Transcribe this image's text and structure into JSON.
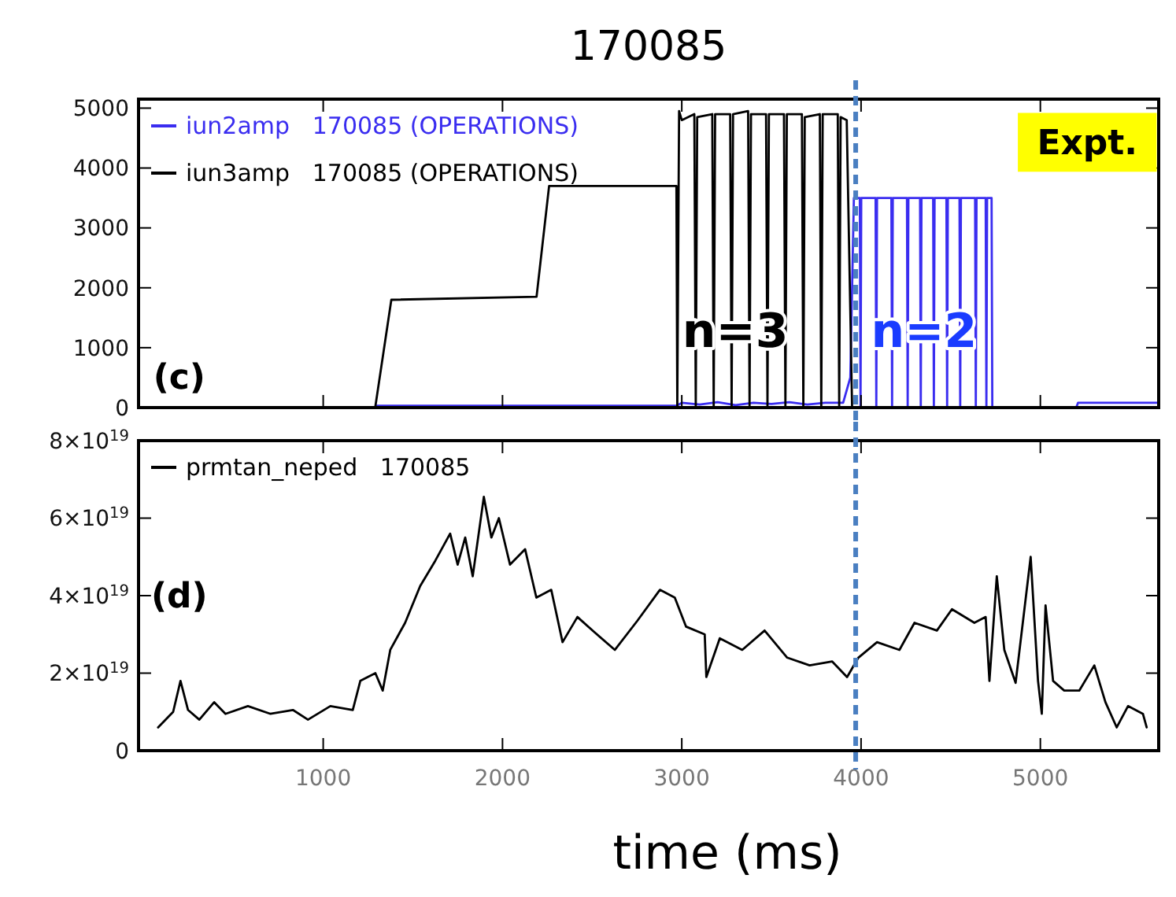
{
  "chart_data": [
    {
      "type": "line",
      "title": "170085",
      "xlim": [
        -30,
        5660
      ],
      "ylim": [
        0,
        5150
      ],
      "yticks": [
        0,
        1000,
        2000,
        3000,
        4000,
        5000
      ],
      "xticks": [
        1000,
        2000,
        3000,
        4000,
        5000
      ],
      "tick_labels": "y",
      "legend": "top left",
      "grid": false,
      "marker": "none",
      "line_style": "solid",
      "series": [
        {
          "name": "iun2amp   170085 (OPERATIONS)",
          "color": "#3a2df0",
          "x": [
            1300,
            2970,
            3000,
            3100,
            3200,
            3300,
            3400,
            3500,
            3600,
            3700,
            3800,
            3900,
            3940,
            3960,
            3993,
            3997,
            4001,
            4081,
            4085,
            4089,
            4169,
            4173,
            4177,
            4256,
            4260,
            4264,
            4329,
            4333,
            4337,
            4402,
            4406,
            4410,
            4476,
            4480,
            4484,
            4549,
            4553,
            4557,
            4636,
            4640,
            4644,
            4695,
            4699,
            4703,
            4728,
            4732,
            5200,
            5210,
            5660
          ],
          "values": [
            30,
            30,
            80,
            50,
            90,
            40,
            80,
            60,
            90,
            50,
            80,
            80,
            500,
            3500,
            3500,
            0,
            3500,
            3500,
            0,
            3500,
            3500,
            0,
            3500,
            3500,
            0,
            3500,
            3500,
            0,
            3500,
            3500,
            0,
            3500,
            3500,
            0,
            3500,
            3500,
            0,
            3500,
            3500,
            0,
            3500,
            3500,
            0,
            3500,
            3500,
            0,
            0,
            80,
            80
          ]
        },
        {
          "name": "iun3amp   170085 (OPERATIONS)",
          "color": "#000000",
          "x": [
            -30,
            1290,
            1380,
            2190,
            2260,
            2970,
            2975,
            2985,
            3000,
            3070,
            3078,
            3086,
            3170,
            3178,
            3186,
            3270,
            3278,
            3286,
            3370,
            3378,
            3386,
            3470,
            3478,
            3486,
            3570,
            3578,
            3586,
            3670,
            3678,
            3686,
            3770,
            3778,
            3786,
            3870,
            3878,
            3886,
            3920,
            3950,
            5660
          ],
          "values": [
            0,
            0,
            1800,
            1850,
            3700,
            3700,
            0,
            4950,
            4800,
            4900,
            0,
            4850,
            4900,
            0,
            4900,
            4900,
            0,
            4900,
            4950,
            0,
            4900,
            4900,
            0,
            4900,
            4900,
            0,
            4900,
            4900,
            0,
            4850,
            4900,
            0,
            4900,
            4900,
            0,
            4850,
            4800,
            0,
            0
          ]
        }
      ],
      "ref_lines": [
        {
          "axis": "x",
          "value": 3970,
          "color": "#4a7fc1",
          "line_style": "dashed"
        }
      ],
      "annotations": [
        "(c)",
        "n=3",
        "n=2",
        "Expt."
      ]
    },
    {
      "type": "line",
      "xlabel": "time (ms)",
      "xlim": [
        -30,
        5660
      ],
      "ylim": [
        0,
        8e+19
      ],
      "xticks": [
        1000,
        2000,
        3000,
        4000,
        5000
      ],
      "yticks": [
        0,
        {
          "value": 2e+19,
          "label": "2×10$^{19}$"
        },
        {
          "value": 4e+19,
          "label": "4×10$^{19}$"
        },
        {
          "value": 6e+19,
          "label": "6×10$^{19}$"
        },
        {
          "value": 8e+19,
          "label": "8×10$^{19}$"
        }
      ],
      "legend": "top left",
      "grid": false,
      "marker": "none",
      "line_style": "solid",
      "series": [
        {
          "name": "prmtan_neped   170085",
          "color": "#000000",
          "x": [
            79,
            163,
            204,
            246,
            309,
            392,
            455,
            580,
            706,
            831,
            915,
            1040,
            1165,
            1207,
            1291,
            1332,
            1374,
            1457,
            1541,
            1625,
            1708,
            1750,
            1792,
            1834,
            1896,
            1938,
            1980,
            2042,
            2126,
            2189,
            2272,
            2335,
            2418,
            2502,
            2627,
            2752,
            2878,
            2961,
            3024,
            3128,
            3137,
            3212,
            3337,
            3462,
            3588,
            3713,
            3839,
            3922,
            3985,
            4089,
            4214,
            4298,
            4423,
            4507,
            4632,
            4695,
            4716,
            4757,
            4799,
            4862,
            4946,
            4987,
            5008,
            5029,
            5071,
            5133,
            5217,
            5301,
            5363,
            5426,
            5489,
            5572,
            5593
          ],
          "values": [
            6e+18,
            1e+19,
            1.8e+19,
            1.05e+19,
            8e+18,
            1.25e+19,
            9.5e+18,
            1.15e+19,
            9.5e+18,
            1.05e+19,
            8e+18,
            1.15e+19,
            1.05e+19,
            1.8e+19,
            2e+19,
            1.55e+19,
            2.6e+19,
            3.3e+19,
            4.25e+19,
            4.9e+19,
            5.6e+19,
            4.8e+19,
            5.5e+19,
            4.5e+19,
            6.55e+19,
            5.5e+19,
            6e+19,
            4.8e+19,
            5.2e+19,
            3.95e+19,
            4.15e+19,
            2.8e+19,
            3.45e+19,
            3.1e+19,
            2.6e+19,
            3.35e+19,
            4.15e+19,
            3.95e+19,
            3.2e+19,
            3e+19,
            1.9e+19,
            2.9e+19,
            2.6e+19,
            3.1e+19,
            2.4e+19,
            2.2e+19,
            2.3e+19,
            1.9e+19,
            2.4e+19,
            2.8e+19,
            2.6e+19,
            3.3e+19,
            3.1e+19,
            3.65e+19,
            3.3e+19,
            3.45e+19,
            1.8e+19,
            4.5e+19,
            2.6e+19,
            1.75e+19,
            5e+19,
            1.8e+19,
            9.5e+18,
            3.75e+19,
            1.8e+19,
            1.55e+19,
            1.55e+19,
            2.2e+19,
            1.25e+19,
            6e+18,
            1.15e+19,
            9.5e+18,
            6e+18
          ]
        }
      ],
      "ref_lines": [
        {
          "axis": "x",
          "value": 3970,
          "color": "#4a7fc1",
          "line_style": "dashed"
        }
      ],
      "annotations": [
        "(d)"
      ]
    }
  ]
}
